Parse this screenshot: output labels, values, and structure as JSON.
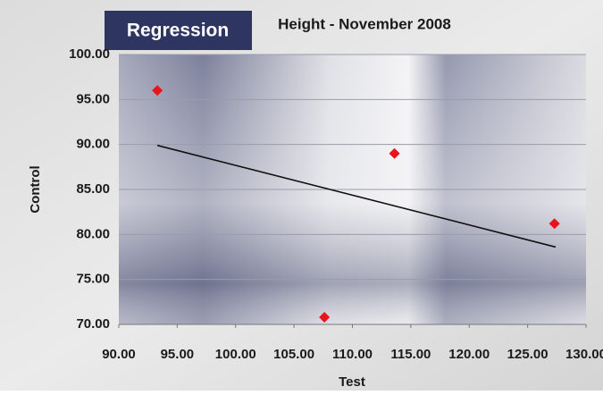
{
  "chart_data": {
    "type": "scatter",
    "badge": "Regression",
    "title": "Height - November 2008",
    "x_label": "Test",
    "y_label": "Control",
    "series": [
      {
        "color": "#e8141c",
        "x": [
          93.3,
          107.6,
          113.6,
          127.3
        ],
        "values": [
          96.0,
          70.8,
          89.0,
          81.2
        ]
      }
    ],
    "trendline": {
      "color": "#111111",
      "x": [
        93.3,
        127.4
      ],
      "values": [
        89.9,
        78.6
      ]
    },
    "xlim": [
      90,
      130
    ],
    "xticks": [
      {
        "value": 90,
        "label": "90.00"
      },
      {
        "value": 95,
        "label": "95.00"
      },
      {
        "value": 100,
        "label": "100.00"
      },
      {
        "value": 105,
        "label": "105.00"
      },
      {
        "value": 110,
        "label": "110.00"
      },
      {
        "value": 115,
        "label": "115.00"
      },
      {
        "value": 120,
        "label": "120.00"
      },
      {
        "value": 125,
        "label": "125.00"
      },
      {
        "value": 130,
        "label": "130.00"
      }
    ],
    "ylim": [
      70,
      100
    ],
    "yticks": [
      {
        "value": 70,
        "label": "70.00"
      },
      {
        "value": 75,
        "label": "75.00"
      },
      {
        "value": 80,
        "label": "80.00"
      },
      {
        "value": 85,
        "label": "85.00"
      },
      {
        "value": 90,
        "label": "90.00"
      },
      {
        "value": 95,
        "label": "95.00"
      },
      {
        "value": 100,
        "label": "100.00"
      }
    ],
    "grid": true
  }
}
